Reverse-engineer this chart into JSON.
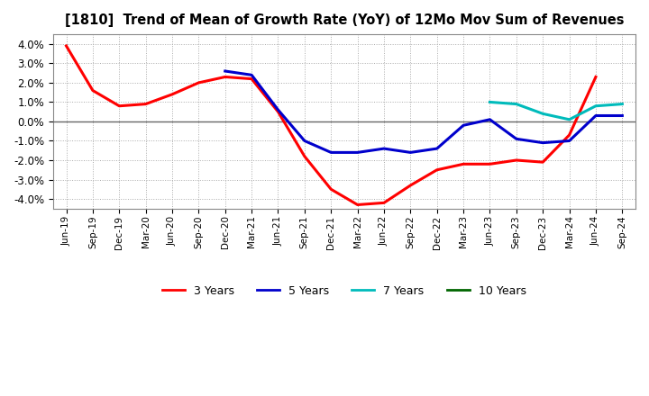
{
  "title": "[1810]  Trend of Mean of Growth Rate (YoY) of 12Mo Mov Sum of Revenues",
  "ylim": [
    -0.045,
    0.045
  ],
  "yticks": [
    -0.04,
    -0.03,
    -0.02,
    -0.01,
    0.0,
    0.01,
    0.02,
    0.03,
    0.04
  ],
  "x_labels": [
    "Jun-19",
    "Sep-19",
    "Dec-19",
    "Mar-20",
    "Jun-20",
    "Sep-20",
    "Dec-20",
    "Mar-21",
    "Jun-21",
    "Sep-21",
    "Dec-21",
    "Mar-22",
    "Jun-22",
    "Sep-22",
    "Dec-22",
    "Mar-23",
    "Jun-23",
    "Sep-23",
    "Dec-23",
    "Mar-24",
    "Jun-24",
    "Sep-24"
  ],
  "three_x": [
    0,
    1,
    2,
    3,
    4,
    5,
    6,
    7,
    8,
    9,
    10,
    11,
    12,
    13,
    14,
    15,
    16,
    17,
    18,
    19,
    20
  ],
  "three_y": [
    0.039,
    0.016,
    0.008,
    0.009,
    0.014,
    0.02,
    0.023,
    0.022,
    0.005,
    -0.018,
    -0.035,
    -0.043,
    -0.042,
    -0.033,
    -0.025,
    -0.022,
    -0.022,
    -0.02,
    -0.021,
    -0.007,
    0.023
  ],
  "five_x": [
    6,
    7,
    8,
    9,
    10,
    11,
    12,
    13,
    14,
    15,
    16,
    17,
    18,
    19,
    20,
    21
  ],
  "five_y": [
    0.026,
    0.024,
    0.006,
    -0.01,
    -0.016,
    -0.016,
    -0.014,
    -0.016,
    -0.014,
    -0.002,
    0.001,
    -0.009,
    -0.011,
    -0.01,
    0.003,
    0.003
  ],
  "seven_x": [
    16,
    17,
    18,
    19,
    20,
    21
  ],
  "seven_y": [
    0.01,
    0.009,
    0.004,
    0.001,
    0.008,
    0.009
  ],
  "colors": {
    "3 Years": "#FF0000",
    "5 Years": "#0000CC",
    "7 Years": "#00BBBB",
    "10 Years": "#006600"
  },
  "legend": [
    "3 Years",
    "5 Years",
    "7 Years",
    "10 Years"
  ],
  "background_color": "#FFFFFF"
}
